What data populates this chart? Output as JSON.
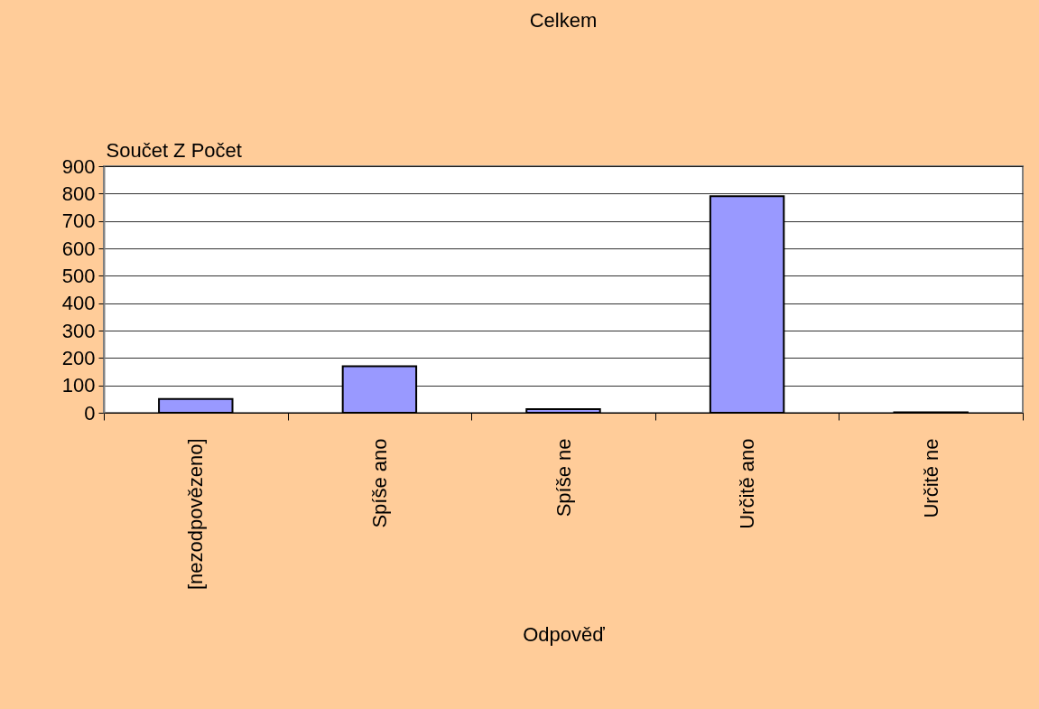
{
  "chart_data": {
    "type": "bar",
    "title": "Celkem",
    "xlabel": "Odpověď",
    "ylabel": "Součet Z Počet",
    "categories": [
      "[nezodpovězeno]",
      "Spíše ano",
      "Spíše ne",
      "Určitě ano",
      "Určitě ne"
    ],
    "values": [
      50,
      170,
      13,
      790,
      2
    ],
    "color": "#9999ff",
    "ylim": [
      0,
      900
    ],
    "yticks": [
      0,
      100,
      200,
      300,
      400,
      500,
      600,
      700,
      800,
      900
    ],
    "grid": "y"
  }
}
